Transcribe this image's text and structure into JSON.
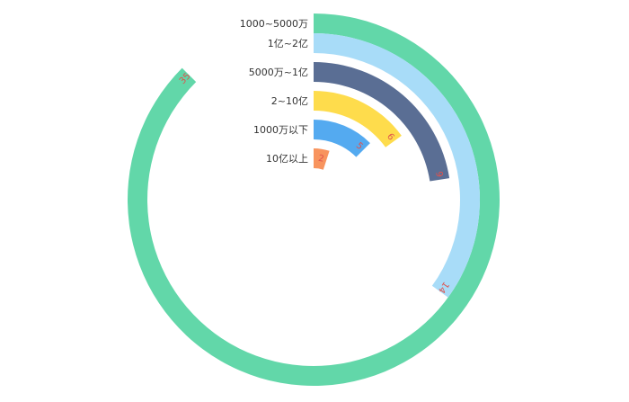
{
  "chart_data": {
    "type": "bar",
    "subtype": "polar-radial-bar",
    "categories": [
      "1000~5000万",
      "1亿~2亿",
      "5000万~1亿",
      "2~10亿",
      "1000万以下",
      "10亿以上"
    ],
    "values": [
      35,
      14,
      9,
      6,
      5,
      2
    ],
    "angle_max": 40,
    "colors": [
      "#62d7a9",
      "#a8dcf8",
      "#5a6e94",
      "#fedc4c",
      "#54aaf0",
      "#f8945e"
    ],
    "label_color": "#e0524d",
    "legend": false,
    "grid": false
  }
}
